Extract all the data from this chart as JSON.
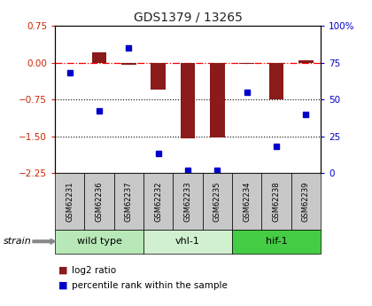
{
  "title": "GDS1379 / 13265",
  "samples": [
    "GSM62231",
    "GSM62236",
    "GSM62237",
    "GSM62232",
    "GSM62233",
    "GSM62235",
    "GSM62234",
    "GSM62238",
    "GSM62239"
  ],
  "log2_ratio": [
    0.0,
    0.22,
    -0.05,
    -0.55,
    -1.55,
    -1.52,
    -0.02,
    -0.75,
    0.05
  ],
  "percentile_rank": [
    68,
    42,
    85,
    13,
    2,
    2,
    55,
    18,
    40
  ],
  "ylim_left": [
    -2.25,
    0.75
  ],
  "ylim_right": [
    0,
    100
  ],
  "yticks_left": [
    0.75,
    0,
    -0.75,
    -1.5,
    -2.25
  ],
  "yticks_right": [
    100,
    75,
    50,
    25,
    0
  ],
  "groups": [
    {
      "label": "wild type",
      "indices": [
        0,
        1,
        2
      ],
      "color": "#b8e8b8"
    },
    {
      "label": "vhl-1",
      "indices": [
        3,
        4,
        5
      ],
      "color": "#d0f0d0"
    },
    {
      "label": "hif-1",
      "indices": [
        6,
        7,
        8
      ],
      "color": "#44cc44"
    }
  ],
  "bar_color": "#8b1a1a",
  "dot_color": "#0000cc",
  "bar_width": 0.5,
  "strain_label": "strain",
  "legend_log2": "log2 ratio",
  "legend_percentile": "percentile rank within the sample",
  "left_label_color": "#cc2200",
  "right_label_color": "#0000cc",
  "sample_box_color": "#c8c8c8",
  "title_color": "#222222"
}
